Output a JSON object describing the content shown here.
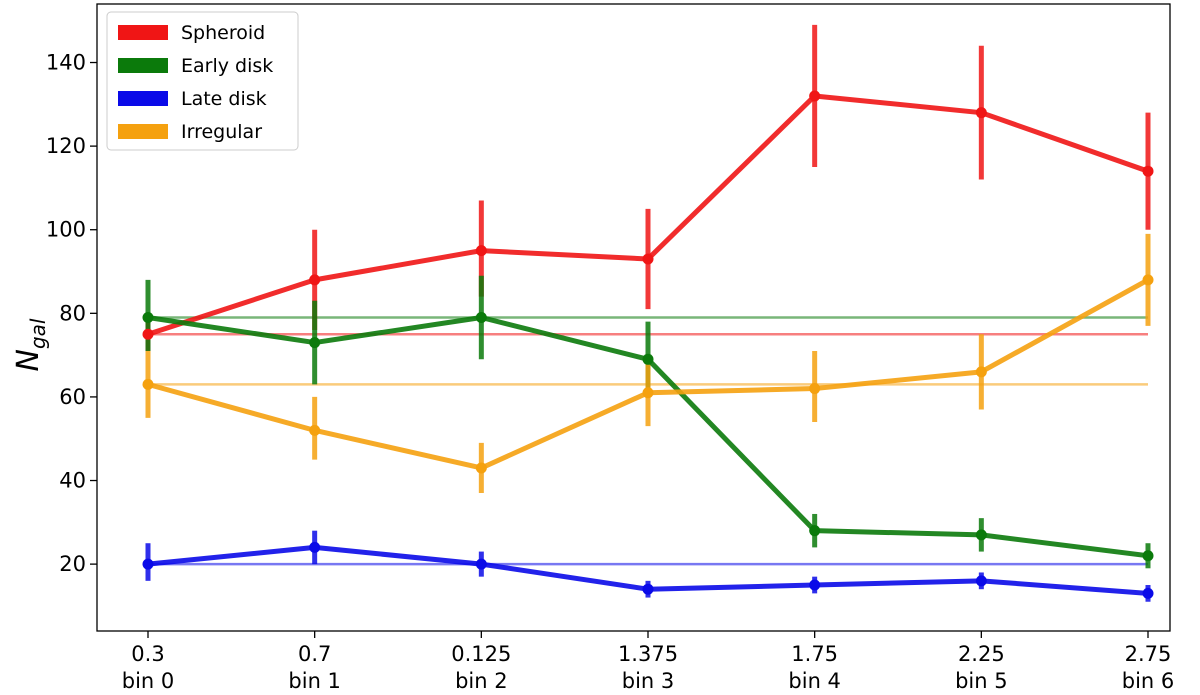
{
  "chart_data": {
    "type": "line",
    "title": "",
    "xlabel": "",
    "ylabel": "N",
    "ylabel_subscript": "gal",
    "x_tick_labels": [
      {
        "top": "0.3",
        "bottom": "bin 0"
      },
      {
        "top": "0.7",
        "bottom": "bin 1"
      },
      {
        "top": "0.125",
        "bottom": "bin 2"
      },
      {
        "top": "1.375",
        "bottom": "bin 3"
      },
      {
        "top": "1.75",
        "bottom": "bin 4"
      },
      {
        "top": "2.25",
        "bottom": "bin 5"
      },
      {
        "top": "2.75",
        "bottom": "bin 6"
      }
    ],
    "y_ticks": [
      20,
      40,
      60,
      80,
      100,
      120,
      140
    ],
    "ylim": [
      4,
      154
    ],
    "grid": false,
    "legend_position": "top-left",
    "series": [
      {
        "name": "Spheroid",
        "color": "#f01515",
        "reference": 75,
        "values": [
          75,
          88,
          95,
          93,
          132,
          128,
          114
        ],
        "errors": [
          [
            71,
            79
          ],
          [
            76,
            100
          ],
          [
            84,
            107
          ],
          [
            81,
            105
          ],
          [
            115,
            149
          ],
          [
            112,
            144
          ],
          [
            100,
            128
          ]
        ]
      },
      {
        "name": "Early disk",
        "color": "#0b7a0b",
        "reference": 79,
        "values": [
          79,
          73,
          79,
          69,
          28,
          27,
          22
        ],
        "errors": [
          [
            71,
            88
          ],
          [
            63,
            83
          ],
          [
            69,
            89
          ],
          [
            61,
            78
          ],
          [
            24,
            32
          ],
          [
            23,
            31
          ],
          [
            19,
            25
          ]
        ]
      },
      {
        "name": "Late disk",
        "color": "#0a0ae8",
        "reference": 20,
        "values": [
          20,
          24,
          20,
          14,
          15,
          16,
          13
        ],
        "errors": [
          [
            16,
            25
          ],
          [
            20,
            28
          ],
          [
            17,
            23
          ],
          [
            12,
            16
          ],
          [
            13,
            17
          ],
          [
            14,
            18
          ],
          [
            11,
            15
          ]
        ]
      },
      {
        "name": "Irregular",
        "color": "#f5a10f",
        "reference": 63,
        "values": [
          63,
          52,
          43,
          61,
          62,
          66,
          88
        ],
        "errors": [
          [
            55,
            71
          ],
          [
            45,
            60
          ],
          [
            37,
            49
          ],
          [
            53,
            69
          ],
          [
            54,
            71
          ],
          [
            57,
            75
          ],
          [
            77,
            99
          ]
        ]
      }
    ]
  }
}
